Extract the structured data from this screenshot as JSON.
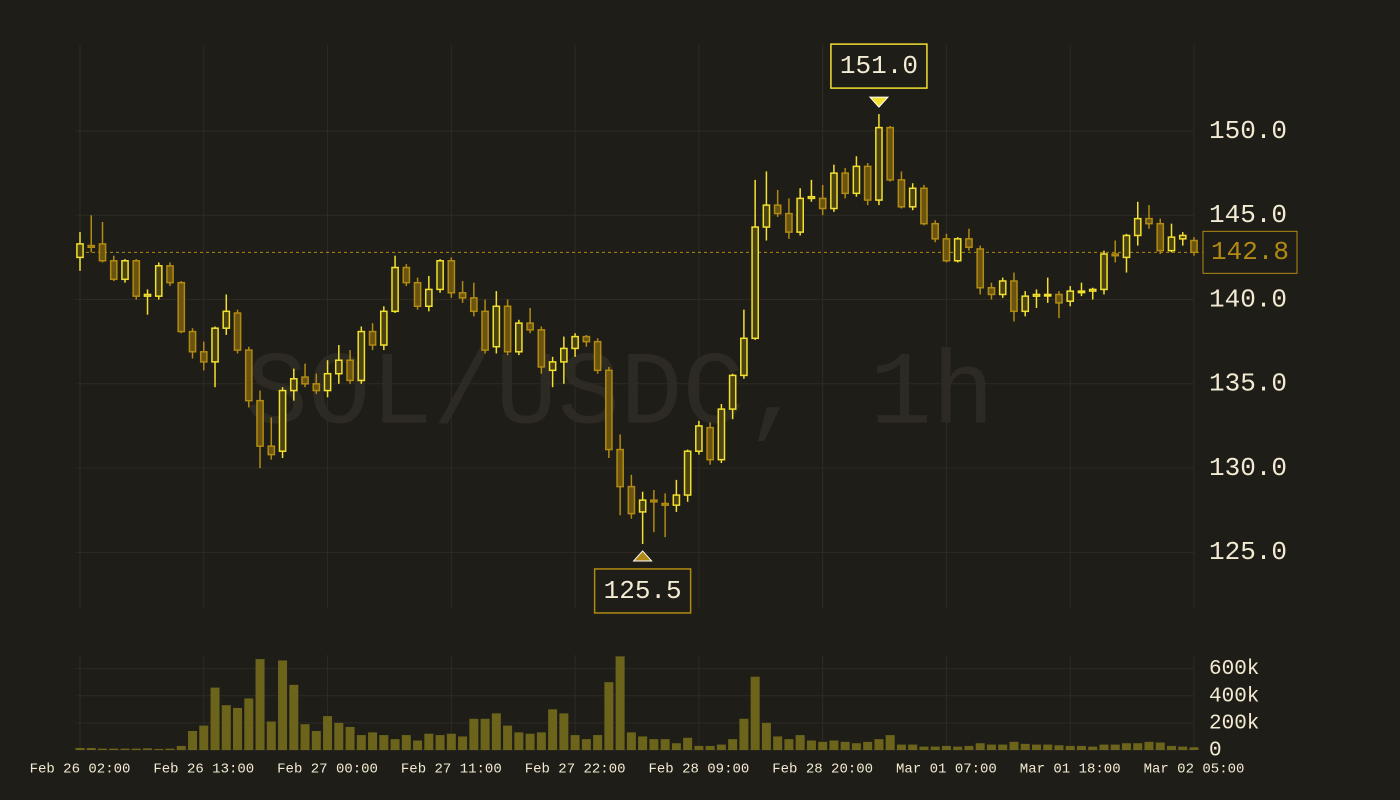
{
  "chart_data": {
    "type": "candlestick",
    "watermark": "SOL/USDC, 1h",
    "categories": [
      "Feb 26 02:00",
      null,
      null,
      null,
      null,
      null,
      null,
      null,
      null,
      null,
      null,
      "Feb 26 13:00",
      null,
      null,
      null,
      null,
      null,
      null,
      null,
      null,
      null,
      null,
      "Feb 27 00:00",
      null,
      null,
      null,
      null,
      null,
      null,
      null,
      null,
      null,
      null,
      "Feb 27 11:00",
      null,
      null,
      null,
      null,
      null,
      null,
      null,
      null,
      null,
      null,
      "Feb 27 22:00",
      null,
      null,
      null,
      null,
      null,
      null,
      null,
      null,
      null,
      null,
      "Feb 28 09:00",
      null,
      null,
      null,
      null,
      null,
      null,
      null,
      null,
      null,
      null,
      "Feb 28 20:00",
      null,
      null,
      null,
      null,
      null,
      null,
      null,
      null,
      null,
      null,
      "Mar 01 07:00",
      null,
      null,
      null,
      null,
      null,
      null,
      null,
      null,
      null,
      null,
      "Mar 01 18:00",
      null,
      null,
      null,
      null,
      null,
      null,
      null,
      null,
      null,
      null,
      "Mar 02 05:00"
    ],
    "open": [
      142.5,
      143.2,
      143.3,
      142.3,
      141.2,
      142.3,
      140.2,
      140.2,
      142.0,
      141.0,
      138.1,
      136.9,
      136.3,
      138.3,
      139.2,
      137.0,
      134.0,
      131.3,
      131.0,
      134.6,
      135.4,
      135.0,
      134.6,
      135.6,
      136.4,
      135.2,
      138.1,
      137.3,
      139.3,
      141.9,
      141.0,
      139.6,
      140.6,
      142.3,
      140.4,
      140.1,
      139.3,
      137.2,
      139.6,
      136.9,
      138.6,
      138.2,
      135.8,
      136.3,
      137.1,
      137.8,
      137.5,
      135.8,
      131.1,
      128.9,
      127.4,
      128.1,
      127.9,
      127.8,
      128.4,
      131.0,
      132.4,
      130.5,
      133.5,
      135.5,
      137.7,
      144.3,
      145.6,
      145.1,
      144.0,
      146.0,
      146.0,
      145.4,
      147.5,
      146.3,
      147.9,
      145.9,
      150.2,
      147.1,
      145.5,
      146.6,
      144.5,
      143.6,
      142.3,
      143.6,
      143.0,
      140.7,
      140.3,
      141.1,
      139.3,
      140.2,
      140.3,
      140.3,
      139.9,
      140.5,
      140.5,
      140.6,
      142.7,
      142.5,
      143.8,
      144.8,
      144.5,
      142.9,
      143.6,
      143.5
    ],
    "high": [
      144.0,
      145.0,
      144.6,
      142.6,
      142.4,
      142.4,
      140.6,
      142.2,
      142.2,
      141.1,
      138.3,
      137.5,
      138.4,
      140.3,
      139.4,
      137.2,
      134.6,
      133.0,
      134.8,
      135.9,
      136.2,
      135.6,
      136.4,
      137.3,
      137.0,
      138.4,
      138.6,
      139.6,
      142.6,
      142.1,
      141.3,
      141.4,
      142.4,
      142.5,
      141.1,
      141.0,
      140.0,
      140.5,
      140.0,
      138.8,
      139.5,
      138.4,
      136.6,
      137.8,
      138.0,
      137.9,
      137.7,
      136.0,
      132.0,
      129.6,
      128.6,
      128.7,
      128.5,
      129.3,
      131.1,
      132.8,
      132.7,
      133.8,
      135.6,
      139.4,
      147.1,
      147.6,
      146.5,
      146.0,
      146.6,
      147.1,
      146.8,
      148.0,
      147.8,
      148.5,
      148.1,
      151.0,
      150.3,
      147.6,
      146.9,
      146.8,
      144.7,
      143.9,
      143.7,
      144.2,
      143.2,
      141.0,
      141.3,
      141.6,
      140.5,
      140.6,
      141.3,
      140.5,
      140.8,
      141.0,
      140.7,
      142.9,
      143.5,
      143.9,
      145.8,
      145.6,
      144.8,
      144.5,
      144.0,
      143.7
    ],
    "low": [
      141.7,
      142.8,
      142.2,
      141.1,
      141.0,
      140.0,
      139.1,
      140.0,
      140.8,
      138.0,
      136.5,
      135.8,
      134.8,
      137.9,
      136.8,
      133.6,
      130.0,
      130.5,
      130.6,
      134.0,
      134.8,
      134.4,
      134.2,
      135.0,
      135.0,
      135.0,
      137.0,
      137.0,
      139.2,
      140.8,
      139.4,
      139.3,
      140.4,
      140.1,
      139.8,
      139.0,
      136.8,
      136.8,
      136.7,
      136.7,
      138.0,
      135.6,
      134.8,
      135.0,
      136.6,
      137.2,
      135.6,
      130.6,
      127.2,
      127.0,
      125.5,
      126.2,
      125.9,
      127.4,
      128.0,
      130.8,
      130.2,
      130.3,
      132.9,
      135.3,
      137.6,
      143.5,
      144.9,
      143.6,
      143.8,
      145.8,
      145.0,
      145.2,
      146.0,
      146.1,
      145.6,
      145.6,
      147.0,
      145.4,
      145.3,
      144.4,
      143.4,
      142.2,
      142.2,
      142.9,
      140.3,
      140.0,
      140.1,
      138.7,
      139.0,
      139.5,
      139.8,
      138.9,
      139.6,
      140.2,
      140.0,
      140.3,
      142.2,
      141.6,
      143.2,
      144.2,
      142.7,
      142.8,
      143.2,
      142.6
    ],
    "close": [
      143.3,
      143.1,
      142.3,
      141.2,
      142.3,
      140.2,
      140.3,
      142.0,
      141.0,
      138.1,
      136.9,
      136.3,
      138.3,
      139.3,
      137.0,
      134.0,
      131.3,
      130.8,
      134.6,
      135.3,
      135.0,
      134.6,
      135.6,
      136.4,
      135.2,
      138.1,
      137.3,
      139.3,
      141.9,
      141.0,
      139.6,
      140.6,
      142.3,
      140.4,
      140.1,
      139.3,
      137.0,
      139.6,
      136.9,
      138.6,
      138.2,
      136.0,
      136.3,
      137.1,
      137.8,
      137.5,
      135.8,
      131.1,
      128.9,
      127.3,
      128.1,
      128.0,
      127.8,
      128.4,
      131.0,
      132.5,
      130.5,
      133.5,
      135.5,
      137.7,
      144.3,
      145.6,
      145.1,
      144.0,
      146.0,
      146.1,
      145.4,
      147.5,
      146.3,
      147.9,
      145.9,
      150.2,
      147.1,
      145.5,
      146.6,
      144.5,
      143.6,
      142.3,
      143.6,
      143.1,
      140.7,
      140.3,
      141.1,
      139.3,
      140.2,
      140.3,
      140.3,
      139.8,
      140.5,
      140.5,
      140.6,
      142.7,
      142.6,
      143.8,
      144.8,
      144.5,
      142.9,
      143.7,
      143.8,
      142.8
    ],
    "up_color": "#f2e030",
    "down_color": "#b08a12",
    "ylim": [
      121.7,
      155.1
    ],
    "yticks": [
      {
        "value": 125,
        "label": "125.0"
      },
      {
        "value": 130,
        "label": "130.0"
      },
      {
        "value": 135,
        "label": "135.0"
      },
      {
        "value": 140,
        "label": "140.0"
      },
      {
        "value": 145,
        "label": "145.0"
      },
      {
        "value": 150,
        "label": "150.0"
      }
    ],
    "grid": true,
    "max_annotation": {
      "value": 151.0,
      "label": "151.0"
    },
    "min_annotation": {
      "value": 125.5,
      "label": "125.5"
    },
    "last_price": {
      "value": 142.8,
      "label": "142.8"
    },
    "volume": {
      "values": [
        15000,
        15000,
        10000,
        10000,
        10000,
        10000,
        12000,
        8000,
        10000,
        30000,
        140000,
        180000,
        460000,
        330000,
        310000,
        380000,
        670000,
        210000,
        660000,
        480000,
        190000,
        140000,
        250000,
        200000,
        170000,
        110000,
        130000,
        110000,
        80000,
        110000,
        70000,
        120000,
        110000,
        120000,
        100000,
        230000,
        230000,
        270000,
        180000,
        130000,
        120000,
        130000,
        300000,
        270000,
        110000,
        80000,
        110000,
        500000,
        690000,
        130000,
        100000,
        80000,
        80000,
        50000,
        90000,
        30000,
        30000,
        40000,
        80000,
        230000,
        540000,
        200000,
        100000,
        80000,
        110000,
        70000,
        60000,
        70000,
        60000,
        50000,
        60000,
        80000,
        110000,
        40000,
        40000,
        25000,
        25000,
        30000,
        25000,
        30000,
        50000,
        40000,
        40000,
        60000,
        45000,
        40000,
        40000,
        35000,
        30000,
        30000,
        25000,
        40000,
        40000,
        50000,
        50000,
        60000,
        55000,
        30000,
        25000,
        20000
      ],
      "color": "#6b641a",
      "ylim": [
        0,
        700000
      ],
      "yticks": [
        0,
        {
          "value": 200000,
          "label": "200k"
        },
        {
          "value": 400000,
          "label": "400k"
        },
        {
          "value": 600000,
          "label": "600k"
        }
      ]
    }
  }
}
